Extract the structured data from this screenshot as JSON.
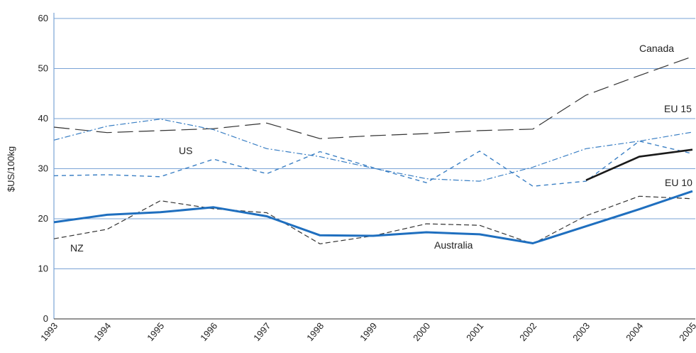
{
  "chart_data": {
    "type": "line",
    "title": "",
    "xlabel": "",
    "ylabel": "$US/100kg",
    "x": [
      "1993",
      "1994",
      "1995",
      "1996",
      "1997",
      "1998",
      "1999",
      "2000",
      "2001",
      "2002",
      "2003",
      "2004",
      "2005"
    ],
    "ylim": [
      0,
      60
    ],
    "yticks": [
      0,
      10,
      20,
      30,
      40,
      50,
      60
    ],
    "grid": true,
    "legend": "none",
    "series": [
      {
        "name": "Canada",
        "color": "#333333",
        "dash": "long-dash",
        "values": [
          38.3,
          37.2,
          37.6,
          38.0,
          39.1,
          36.0,
          36.6,
          37.0,
          37.6,
          37.9,
          44.7,
          48.6,
          52.4
        ]
      },
      {
        "name": "EU 15",
        "color": "#3a7fc4",
        "dash": "dash-dot",
        "values": [
          35.7,
          38.5,
          39.9,
          37.8,
          34.0,
          32.4,
          30.1,
          28.0,
          27.5,
          30.3,
          34.0,
          35.5,
          37.3
        ]
      },
      {
        "name": "US",
        "color": "#3a7fc4",
        "dash": "short-dash",
        "values": [
          28.6,
          28.8,
          28.4,
          31.9,
          29.0,
          33.4,
          30.2,
          27.2,
          33.5,
          26.5,
          27.5,
          35.5,
          33.0
        ]
      },
      {
        "name": "EU 10",
        "color": "#1a1a1a",
        "dash": "solid",
        "values": [
          null,
          null,
          null,
          null,
          null,
          null,
          null,
          null,
          null,
          null,
          27.7,
          32.4,
          33.8
        ]
      },
      {
        "name": "NZ",
        "color": "#333333",
        "dash": "dash",
        "values": [
          16.0,
          17.9,
          23.6,
          22.0,
          21.2,
          15.0,
          16.6,
          19.0,
          18.7,
          15.0,
          20.6,
          24.5,
          24.0
        ]
      },
      {
        "name": "Australia",
        "color": "#1f6fbf",
        "dash": "solid-thick",
        "values": [
          19.3,
          20.8,
          21.3,
          22.3,
          20.5,
          16.7,
          16.6,
          17.3,
          16.9,
          15.1,
          18.5,
          21.9,
          25.5
        ]
      }
    ]
  }
}
